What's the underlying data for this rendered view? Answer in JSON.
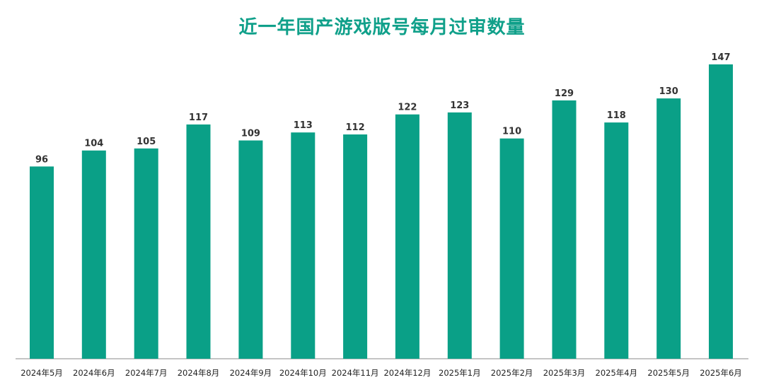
{
  "chart_data": {
    "type": "bar",
    "title": "近一年国产游戏版号每月过审数量",
    "xlabel": "",
    "ylabel": "",
    "categories": [
      "2024年5月",
      "2024年6月",
      "2024年7月",
      "2024年8月",
      "2024年9月",
      "2024年10月",
      "2024年11月",
      "2024年12月",
      "2025年1月",
      "2025年2月",
      "2025年3月",
      "2025年4月",
      "2025年5月",
      "2025年6月"
    ],
    "values": [
      96,
      104,
      105,
      117,
      109,
      113,
      112,
      122,
      123,
      110,
      129,
      118,
      130,
      147
    ],
    "ylim": [
      0,
      150
    ],
    "grid": false,
    "legend": "none",
    "data_labels": true,
    "colors": {
      "bar": "#0aa087",
      "title": "#10a08a"
    }
  }
}
